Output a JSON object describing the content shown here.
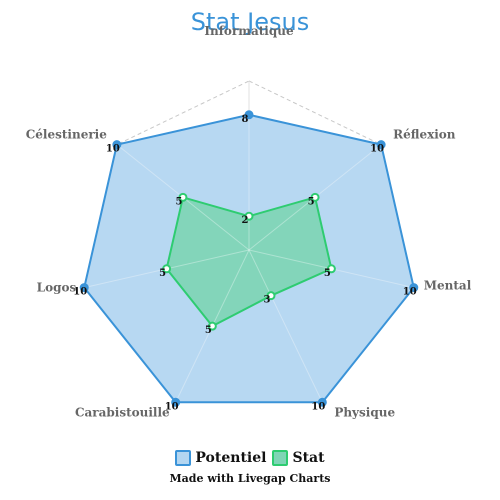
{
  "chart_data": {
    "type": "radar",
    "title": "Stat Jesus",
    "categories": [
      "Informatique",
      "Réflexion",
      "Mental",
      "Physique",
      "Carabistouille",
      "Logos",
      "Célestinerie"
    ],
    "range": [
      0,
      10
    ],
    "grid": true,
    "legend_position": "bottom",
    "series": [
      {
        "name": "Potentiel",
        "values": [
          8,
          10,
          10,
          10,
          10,
          10,
          10
        ],
        "color": "#3a93d8",
        "fill": "#b3d6f1"
      },
      {
        "name": "Stat",
        "values": [
          2,
          5,
          5,
          3,
          5,
          5,
          5
        ],
        "color": "#2ecc71",
        "fill": "#7fd5b6"
      }
    ]
  },
  "footer": {
    "credit": "Made with Livegap Charts"
  }
}
